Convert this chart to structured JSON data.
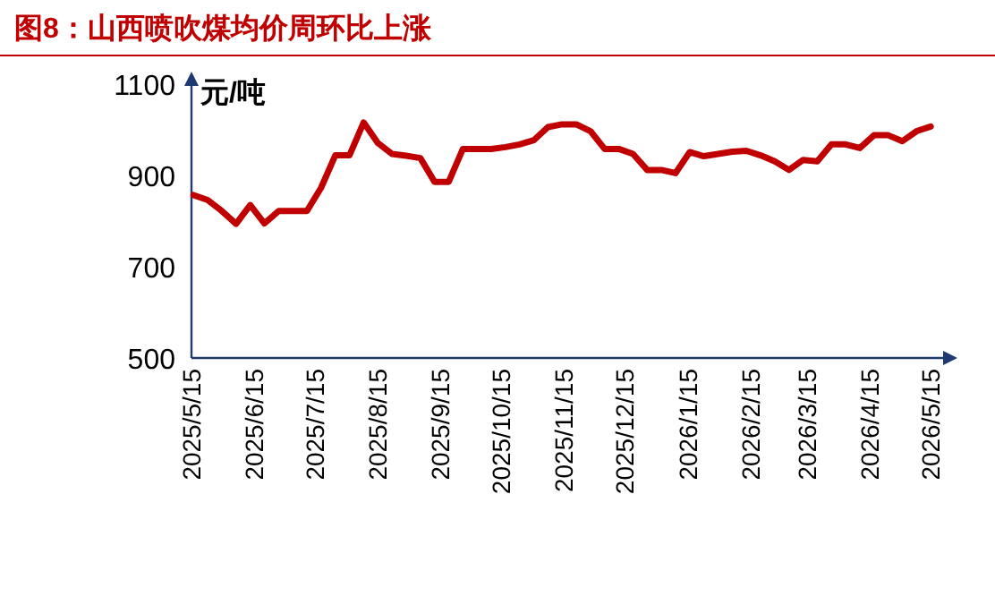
{
  "chart_data": {
    "type": "line",
    "title": "图8：山西喷吹煤均价周环比上涨",
    "ylabel": "元/吨",
    "x": [
      "2025-05-16",
      "2025-05-23",
      "2025-05-30",
      "2025-06-06",
      "2025-06-13",
      "2025-06-20",
      "2025-06-27",
      "2025-07-04",
      "2025-07-11",
      "2025-07-18",
      "2025-07-25",
      "2025-08-01",
      "2025-08-08",
      "2025-08-15",
      "2025-08-22",
      "2025-08-29",
      "2025-09-05",
      "2025-09-12",
      "2025-09-19",
      "2025-09-26",
      "2025-10-03",
      "2025-10-10",
      "2025-10-17",
      "2025-10-24",
      "2025-10-31",
      "2025-11-07",
      "2025-11-14",
      "2025-11-21",
      "2025-11-28",
      "2025-12-05",
      "2025-12-12",
      "2025-12-19",
      "2025-12-26",
      "2026-01-02",
      "2026-01-09",
      "2026-01-16",
      "2026-01-23",
      "2026-01-30",
      "2026-02-06",
      "2026-02-13",
      "2026-02-20",
      "2026-02-27",
      "2026-03-06",
      "2026-03-13",
      "2026-03-20",
      "2026-03-27",
      "2026-04-03",
      "2026-04-10",
      "2026-04-17",
      "2026-04-24",
      "2026-05-01",
      "2026-05-08",
      "2026-05-15"
    ],
    "series": [
      {
        "color": "#c00000",
        "values": [
          857,
          846,
          822,
          794,
          835,
          795,
          822,
          822,
          822,
          873,
          944,
          944,
          1016,
          971,
          947,
          943,
          938,
          886,
          886,
          958,
          958,
          958,
          962,
          968,
          977,
          1006,
          1012,
          1012,
          997,
          958,
          958,
          947,
          912,
          912,
          905,
          951,
          942,
          947,
          952,
          954,
          944,
          931,
          912,
          934,
          931,
          968,
          968,
          960,
          988,
          988,
          975,
          997,
          1007
        ]
      }
    ],
    "xlim": [
      "2025-05-15",
      "2026-05-22"
    ],
    "xticks": [
      {
        "value": "2025-05-15",
        "label": "2025/5/15"
      },
      {
        "value": "2025-06-15",
        "label": "2025/6/15"
      },
      {
        "value": "2025-07-15",
        "label": "2025/7/15"
      },
      {
        "value": "2025-08-15",
        "label": "2025/8/15"
      },
      {
        "value": "2025-09-15",
        "label": "2025/9/15"
      },
      {
        "value": "2025-10-15",
        "label": "2025/10/15"
      },
      {
        "value": "2025-11-15",
        "label": "2025/11/15"
      },
      {
        "value": "2025-12-15",
        "label": "2025/12/15"
      },
      {
        "value": "2026-01-15",
        "label": "2026/1/15"
      },
      {
        "value": "2026-02-15",
        "label": "2026/2/15"
      },
      {
        "value": "2026-03-15",
        "label": "2026/3/15"
      },
      {
        "value": "2026-04-15",
        "label": "2026/4/15"
      },
      {
        "value": "2026-05-15",
        "label": "2026/5/15"
      }
    ],
    "ylim": [
      500,
      1100
    ],
    "yticks": [
      500,
      700,
      900,
      1100
    ],
    "grid": false,
    "marker": "none",
    "line_style": "solid"
  }
}
